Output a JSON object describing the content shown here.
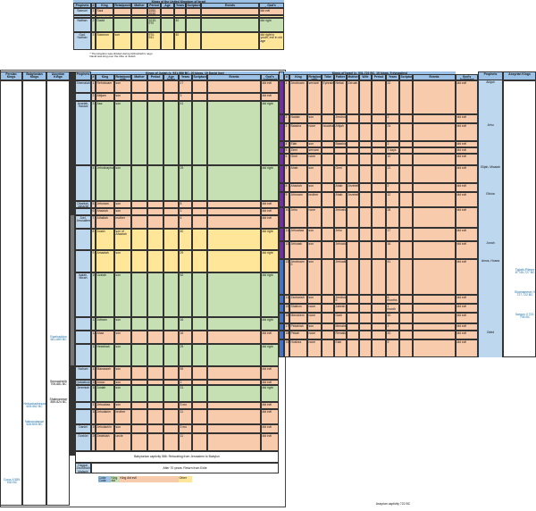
{
  "united": {
    "title": "Kings of the United Kingdom of Israel",
    "headers": [
      "Prophets",
      "#",
      "King",
      "Relationship with Previous King",
      "Mother",
      "Period",
      "Age being King",
      "Years",
      "Scripture",
      "Events",
      "God's Judgment"
    ],
    "rows": [
      {
        "prophet": "Samuel",
        "n": "1",
        "name": "Saul",
        "rel": "",
        "period": "1050-1010",
        "years": "",
        "judgment": "did evil",
        "color": "#f8cbad"
      },
      {
        "prophet": "",
        "n": "",
        "name": "Ishbosheth",
        "rel": "son",
        "period": "",
        "years": "",
        "judgment": "",
        "color": "#ffe699"
      },
      {
        "prophet": "Nathan",
        "n": "2",
        "name": "David",
        "rel": "",
        "period": "1010-970",
        "years": "40",
        "judgment": "did right",
        "color": "#c6e0b4"
      },
      {
        "prophet": "Gad, Nathan",
        "n": "3",
        "name": "Solomon",
        "rel": "son",
        "period": "970-931",
        "years": "40",
        "judgment": "did right in youth, evil in old age",
        "color": "#ffe699"
      }
    ],
    "notes": [
      "* The kingdom was divided during Ishbosheth's reign",
      "David was king over the tribe of Judah"
    ]
  },
  "side_headers": [
    "Persian Kings",
    "Babylonian Kings",
    "Assyrian Kings"
  ],
  "side_text": {
    "babylonian": [
      "Nebuchadnezzar 605-562 BC",
      "Nabopolassar 626-605 BC"
    ],
    "assyrian": [
      "Esarhaddon 681-669 BC",
      "Sennacherib 705-681 BC",
      "Shalmaneser 859-824 BC"
    ],
    "persian": [
      "Cyrus II 559-530 BC"
    ]
  },
  "judah": {
    "title": "Kings of Judah (c. 931-586 BC, 20 kings, 19 David line)",
    "headers": [
      "#",
      "King",
      "Relationship with Previous King",
      "Mother",
      "Period",
      "Age being King",
      "Years",
      "Scripture",
      "Events",
      "God's Judgment"
    ],
    "prophets_header": "Prophets",
    "kings": [
      {
        "n": "1",
        "name": "Rehoboam",
        "rel": "son",
        "years": "17",
        "judgment": "did evil",
        "color": "#f8cbad",
        "prophet": "Shemaiah"
      },
      {
        "n": "2",
        "name": "Abijam",
        "rel": "son",
        "years": "3",
        "judgment": "did evil",
        "color": "#f8cbad",
        "prophet": ""
      },
      {
        "n": "3",
        "name": "Asa",
        "rel": "son",
        "years": "41",
        "judgment": "did right",
        "color": "#c6e0b4",
        "prophet": "Azariah, Hanani"
      },
      {
        "n": "4",
        "name": "Jehoshaphat",
        "rel": "son",
        "years": "25",
        "judgment": "did right",
        "color": "#c6e0b4",
        "prophet": ""
      },
      {
        "n": "5",
        "name": "Jehoram",
        "rel": "son",
        "years": "8",
        "judgment": "did evil",
        "color": "#f8cbad",
        "prophet": "Obadiah, Jahaziel"
      },
      {
        "n": "6",
        "name": "Ahaziah",
        "rel": "son",
        "years": "1",
        "judgment": "did evil",
        "color": "#f8cbad",
        "prophet": ""
      },
      {
        "n": "7",
        "name": "Athaliah",
        "rel": "mother",
        "years": "6",
        "judgment": "did evil",
        "color": "#f8cbad",
        "prophet": "Joel, Jerusalem"
      },
      {
        "n": "8",
        "name": "Joash",
        "rel": "son of Ahaziah",
        "years": "40",
        "judgment": "did right",
        "color": "#ffe699",
        "prophet": ""
      },
      {
        "n": "9",
        "name": "Amaziah",
        "rel": "son",
        "years": "29",
        "judgment": "did right",
        "color": "#ffe699",
        "prophet": ""
      },
      {
        "n": "10",
        "name": "Uzziah",
        "rel": "son",
        "years": "52",
        "judgment": "did right",
        "color": "#c6e0b4",
        "prophet": "Isaiah, Micah"
      },
      {
        "n": "11",
        "name": "Jotham",
        "rel": "son",
        "years": "16",
        "judgment": "did right",
        "color": "#c6e0b4",
        "prophet": ""
      },
      {
        "n": "12",
        "name": "Ahaz",
        "rel": "son",
        "years": "16",
        "judgment": "did evil",
        "color": "#f8cbad",
        "prophet": ""
      },
      {
        "n": "13",
        "name": "Hezekiah",
        "rel": "son",
        "years": "29",
        "judgment": "did right",
        "color": "#c6e0b4",
        "prophet": ""
      },
      {
        "n": "14",
        "name": "Manasseh",
        "rel": "son",
        "years": "55",
        "judgment": "did evil",
        "color": "#f8cbad",
        "prophet": "Nahum"
      },
      {
        "n": "15",
        "name": "Amon",
        "rel": "son",
        "years": "2",
        "judgment": "did evil",
        "color": "#f8cbad",
        "prophet": "Habakkuk, Zephaniah"
      },
      {
        "n": "16",
        "name": "Josiah",
        "rel": "son",
        "years": "31",
        "judgment": "did right",
        "color": "#c6e0b4",
        "prophet": "Jeremiah"
      },
      {
        "n": "17",
        "name": "Jehoahaz",
        "rel": "son",
        "years": "3 mo",
        "judgment": "did evil",
        "color": "#f8cbad",
        "prophet": ""
      },
      {
        "n": "18",
        "name": "Jehoiakim",
        "rel": "brother",
        "years": "11",
        "judgment": "did evil",
        "color": "#f8cbad",
        "prophet": ""
      },
      {
        "n": "19",
        "name": "Jehoiachin",
        "rel": "son",
        "years": "3 mo",
        "judgment": "did evil",
        "color": "#f8cbad",
        "prophet": "Daniel"
      },
      {
        "n": "20",
        "name": "Zedekiah",
        "rel": "uncle",
        "years": "11",
        "judgment": "did evil",
        "color": "#f8cbad",
        "prophet": "Ezekiel"
      }
    ],
    "captivity": "Babylonian captivity 586: Relocating from Jerusalem to Babylon",
    "return": "After 70 years: Return from Exile",
    "return_prophets": "Haggai, Zechariah, Malachi"
  },
  "legend": {
    "label": "Color Code Legend",
    "items": [
      {
        "text": "King did right",
        "color": "#c6e0b4"
      },
      {
        "text": "King did evil",
        "color": "#f8cbad"
      },
      {
        "text": "Other",
        "color": "#ffe699"
      }
    ]
  },
  "israel": {
    "title": "Kings of Israel (c. 931-722 BC, 19 kings, 9 dynasties)",
    "headers": [
      "#",
      "King",
      "Relationship with Previous King",
      "Tribe",
      "Father",
      "Mother",
      "Wife",
      "Period",
      "Years",
      "Scripture",
      "Events",
      "God's Judgment"
    ],
    "prophets_header": "Prophets",
    "assyrian_header": "Assyrian Kings",
    "kings": [
      {
        "n": "1",
        "name": "Jeroboam",
        "rel": "servant",
        "tribe": "Ephraim",
        "father": "Nebat",
        "mother": "Zeruah",
        "years": "22",
        "judgment": "did evil",
        "prophet": "Ahijah"
      },
      {
        "n": "2",
        "name": "Nadab",
        "rel": "son",
        "tribe": "",
        "father": "Jeroboam",
        "mother": "",
        "years": "2",
        "judgment": "did evil",
        "prophet": ""
      },
      {
        "n": "3",
        "name": "Baasha",
        "rel": "none",
        "tribe": "Issachar",
        "father": "Ahijah",
        "mother": "",
        "years": "24",
        "judgment": "did evil",
        "prophet": "Jehu"
      },
      {
        "n": "4",
        "name": "Elah",
        "rel": "son",
        "tribe": "",
        "father": "Baasha",
        "mother": "",
        "years": "2",
        "judgment": "did evil",
        "prophet": ""
      },
      {
        "n": "5",
        "name": "Zimri",
        "rel": "servant",
        "tribe": "",
        "father": "",
        "mother": "",
        "years": "7 days",
        "judgment": "did evil",
        "prophet": ""
      },
      {
        "n": "6",
        "name": "Omri",
        "rel": "none",
        "tribe": "",
        "father": "",
        "mother": "",
        "years": "12",
        "judgment": "did evil",
        "prophet": ""
      },
      {
        "n": "7",
        "name": "Ahab",
        "rel": "son",
        "tribe": "",
        "father": "Omri",
        "mother": "",
        "years": "22",
        "judgment": "did evil",
        "prophet": "Elijah, Micaiah"
      },
      {
        "n": "8",
        "name": "Ahaziah",
        "rel": "son",
        "tribe": "",
        "father": "Ahab",
        "mother": "Jezebel",
        "years": "2",
        "judgment": "did evil",
        "prophet": ""
      },
      {
        "n": "9",
        "name": "Jehoram",
        "rel": "brother",
        "tribe": "",
        "father": "Ahab",
        "mother": "Jezebel",
        "years": "12",
        "judgment": "did evil",
        "prophet": "Elisha"
      },
      {
        "n": "10",
        "name": "Jehu",
        "rel": "none",
        "tribe": "",
        "father": "Jehoshaphat",
        "mother": "",
        "years": "28",
        "judgment": "did evil",
        "prophet": ""
      },
      {
        "n": "11",
        "name": "Jehoahaz",
        "rel": "son",
        "tribe": "",
        "father": "Jehu",
        "mother": "",
        "years": "17",
        "judgment": "did evil",
        "prophet": ""
      },
      {
        "n": "12",
        "name": "Jehoash",
        "rel": "son",
        "tribe": "",
        "father": "Jehoahaz",
        "mother": "",
        "years": "16",
        "judgment": "did evil",
        "prophet": "Jonah"
      },
      {
        "n": "13",
        "name": "Jeroboam II",
        "rel": "son",
        "tribe": "",
        "father": "Jehoash",
        "mother": "",
        "years": "41",
        "judgment": "did evil",
        "prophet": "Amos, Hosea"
      },
      {
        "n": "14",
        "name": "Zechariah",
        "rel": "son",
        "tribe": "",
        "father": "Jeroboam II",
        "mother": "",
        "years": "6 months",
        "judgment": "did evil",
        "prophet": ""
      },
      {
        "n": "15",
        "name": "Shallum",
        "rel": "none",
        "tribe": "",
        "father": "Jabesh",
        "mother": "",
        "years": "1 month",
        "judgment": "did evil",
        "prophet": ""
      },
      {
        "n": "16",
        "name": "Menahem",
        "rel": "none",
        "tribe": "",
        "father": "Gadi",
        "mother": "",
        "years": "10",
        "judgment": "did evil",
        "prophet": ""
      },
      {
        "n": "17",
        "name": "Pekahiah",
        "rel": "son",
        "tribe": "",
        "father": "Menahem",
        "mother": "",
        "years": "2",
        "judgment": "did evil",
        "prophet": ""
      },
      {
        "n": "18",
        "name": "Pekah",
        "rel": "none",
        "tribe": "",
        "father": "Remaliah",
        "mother": "",
        "years": "20",
        "judgment": "did evil",
        "prophet": "Oded"
      },
      {
        "n": "19",
        "name": "Hoshea",
        "rel": "none",
        "tribe": "",
        "father": "Elah",
        "mother": "",
        "years": "9",
        "judgment": "did evil",
        "prophet": ""
      }
    ],
    "assyrian": [
      "Tiglath-Pileser III 745-727 BC",
      "Shalmaneser V 727-722 BC",
      "Sargon II 722-705 BC"
    ],
    "captivity": "Assyrian captivity 722 BC"
  },
  "colors": {
    "header": "#9bc2e6",
    "light_blue": "#bdd7ee",
    "right": "#c6e0b4",
    "evil": "#f8cbad",
    "other": "#ffe699",
    "israel_bar": "#7030a0"
  }
}
